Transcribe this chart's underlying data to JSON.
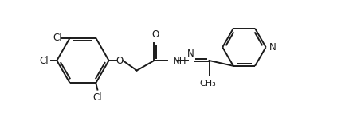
{
  "bg_color": "#ffffff",
  "line_color": "#1a1a1a",
  "bond_width": 1.4,
  "text_color": "#1a1a1a",
  "font_size": 8.5,
  "figsize": [
    4.38,
    1.52
  ],
  "dpi": 100,
  "xlim": [
    0,
    9.5
  ],
  "ylim": [
    0.2,
    3.8
  ]
}
